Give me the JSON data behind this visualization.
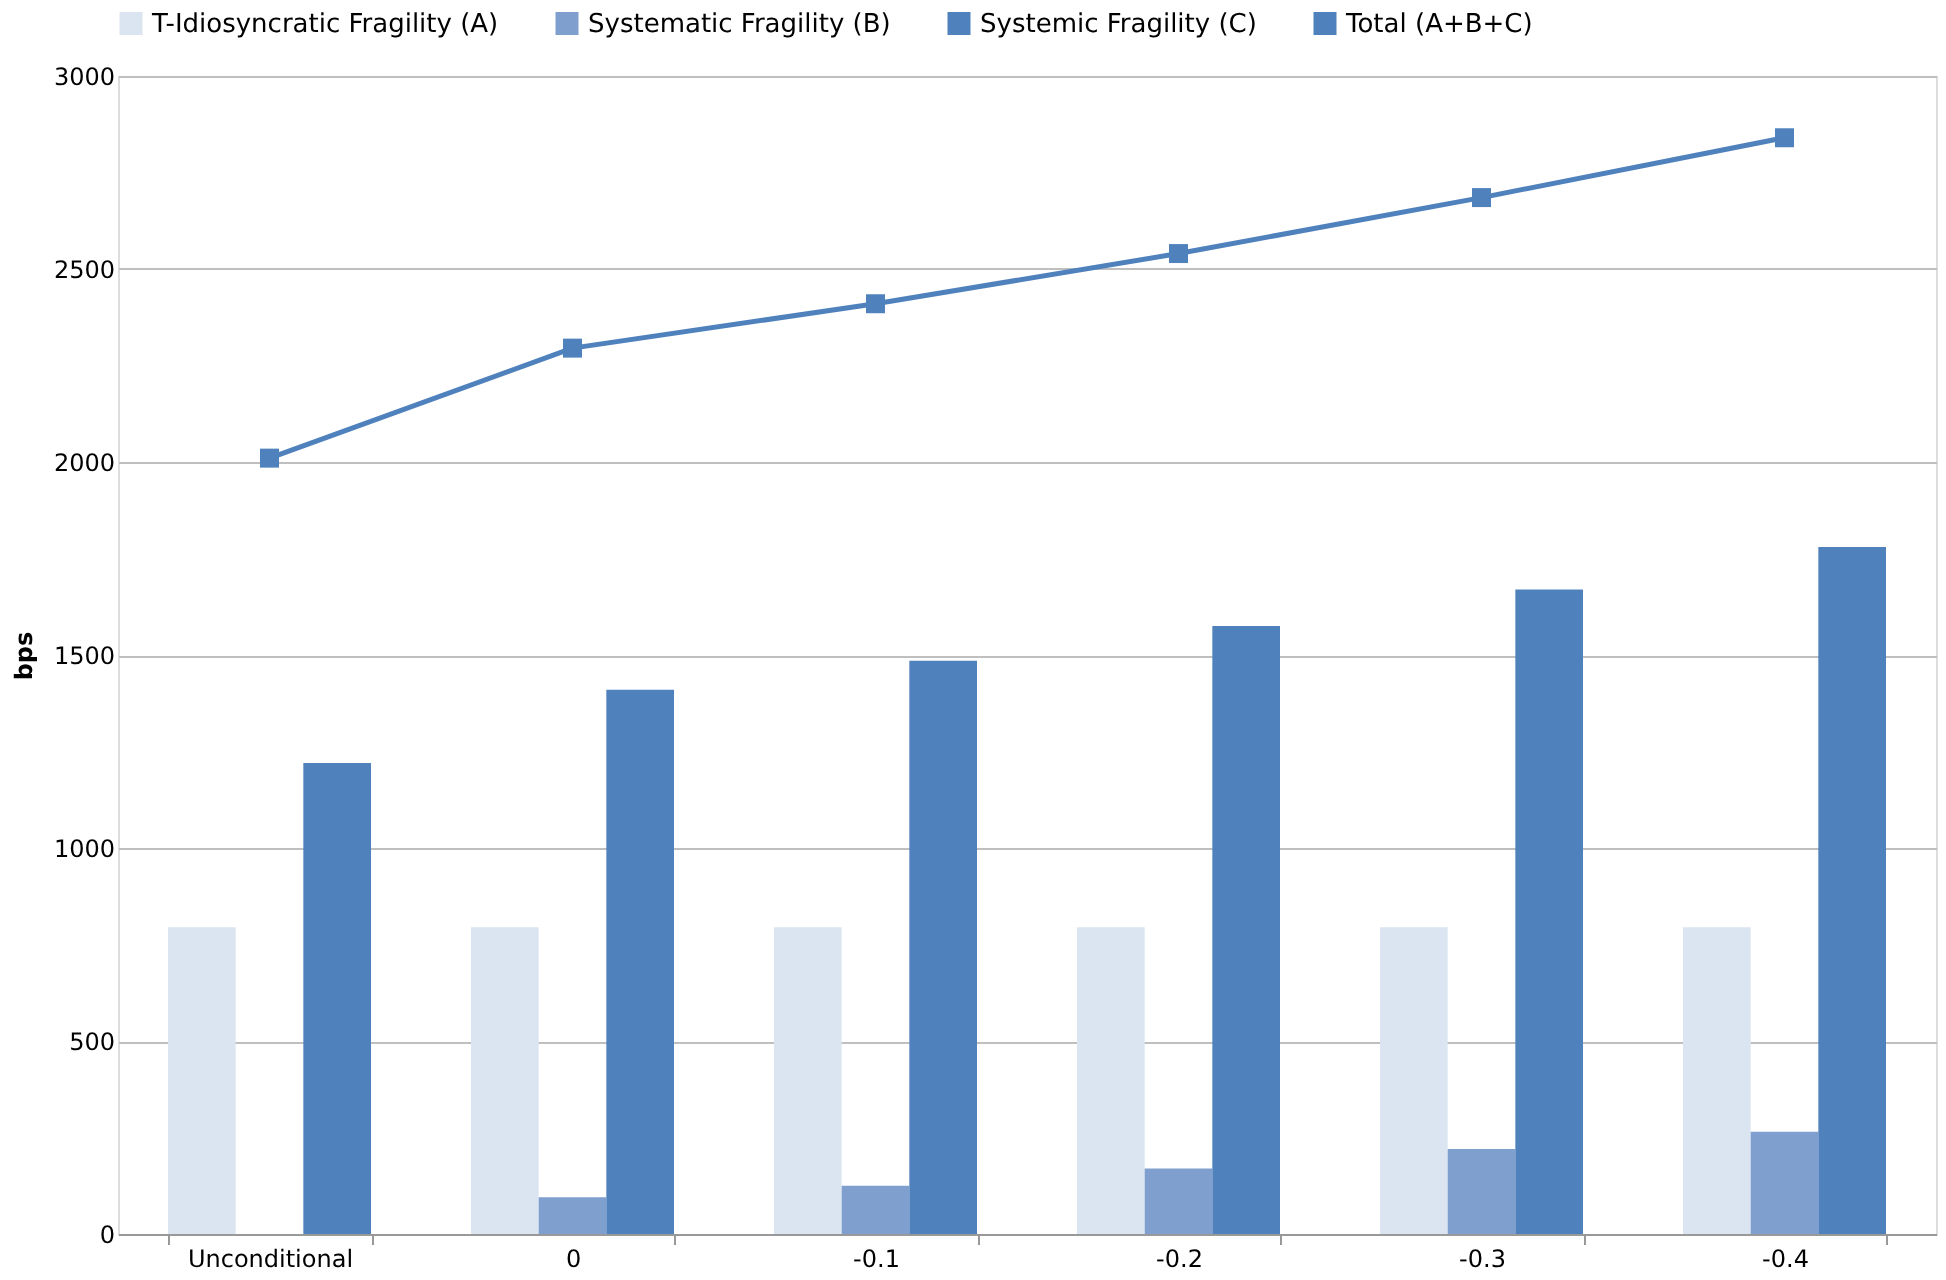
{
  "chart_data": {
    "type": "bar",
    "ylabel": "bps",
    "categories": [
      "Unconditional",
      "0",
      "-0.1",
      "-0.2",
      "-0.3",
      "-0.4"
    ],
    "series": [
      {
        "name": "T-Idiosyncratic Fragility (A)",
        "color": "#dbe5f1",
        "values": [
          795,
          795,
          795,
          795,
          795,
          795
        ]
      },
      {
        "name": "Systematic Fragility (B)",
        "color": "#7f9fcf",
        "values": [
          0,
          95,
          125,
          170,
          220,
          265
        ]
      },
      {
        "name": "Systemic Fragility (C)",
        "color": "#4f81bd",
        "values": [
          1220,
          1410,
          1485,
          1575,
          1670,
          1780
        ]
      },
      {
        "name": "Total (A+B+C)",
        "type": "line",
        "color": "#4f81bd",
        "marker": "square",
        "line_style": "solid",
        "values": [
          2010,
          2295,
          2410,
          2540,
          2685,
          2840
        ]
      }
    ],
    "ylim": [
      0,
      3000
    ],
    "yticks": [
      0,
      500,
      1000,
      1500,
      2000,
      2500,
      3000
    ],
    "grid": "y",
    "legend": "top"
  }
}
